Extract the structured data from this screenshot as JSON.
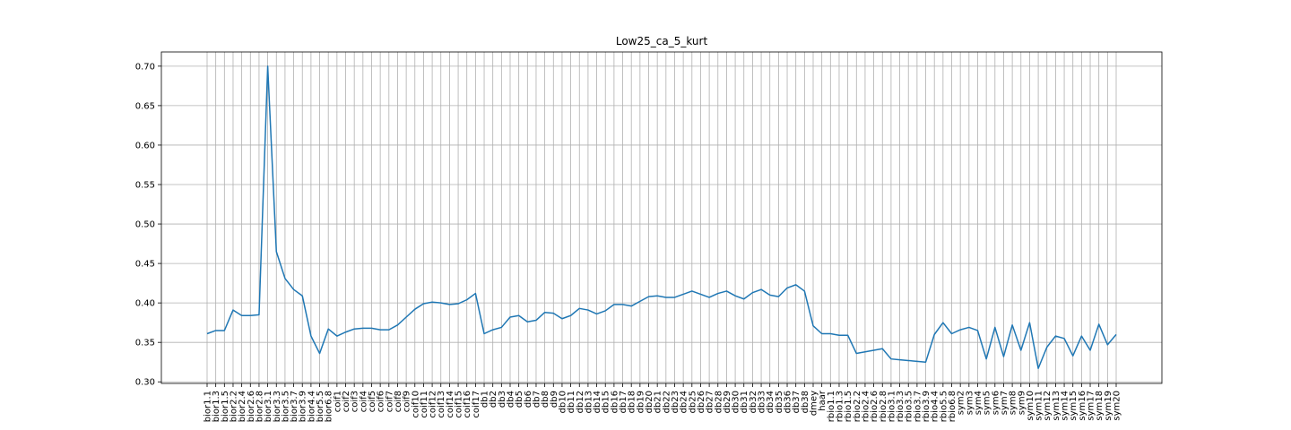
{
  "chart_data": {
    "type": "line",
    "title": "Low25_ca_5_kurt",
    "xlabel": "",
    "ylabel": "",
    "ylim": [
      0.298,
      0.718
    ],
    "yticks": [
      0.3,
      0.35,
      0.4,
      0.45,
      0.5,
      0.55,
      0.6,
      0.65,
      0.7
    ],
    "grid": true,
    "line_color": "#1f77b4",
    "categories": [
      "bior1.1",
      "bior1.3",
      "bior1.5",
      "bior2.2",
      "bior2.4",
      "bior2.6",
      "bior2.8",
      "bior3.1",
      "bior3.3",
      "bior3.5",
      "bior3.7",
      "bior3.9",
      "bior4.4",
      "bior5.5",
      "bior6.8",
      "coif1",
      "coif2",
      "coif3",
      "coif4",
      "coif5",
      "coif6",
      "coif7",
      "coif8",
      "coif9",
      "coif10",
      "coif11",
      "coif12",
      "coif13",
      "coif14",
      "coif15",
      "coif16",
      "coif17",
      "db1",
      "db2",
      "db3",
      "db4",
      "db5",
      "db6",
      "db7",
      "db8",
      "db9",
      "db10",
      "db11",
      "db12",
      "db13",
      "db14",
      "db15",
      "db16",
      "db17",
      "db18",
      "db19",
      "db20",
      "db21",
      "db22",
      "db23",
      "db24",
      "db25",
      "db26",
      "db27",
      "db28",
      "db29",
      "db30",
      "db31",
      "db32",
      "db33",
      "db34",
      "db35",
      "db36",
      "db37",
      "db38",
      "dmey",
      "haar",
      "rbio1.1",
      "rbio1.3",
      "rbio1.5",
      "rbio2.2",
      "rbio2.4",
      "rbio2.6",
      "rbio2.8",
      "rbio3.1",
      "rbio3.3",
      "rbio3.5",
      "rbio3.7",
      "rbio3.9",
      "rbio4.4",
      "rbio5.5",
      "rbio6.8",
      "sym2",
      "sym3",
      "sym4",
      "sym5",
      "sym6",
      "sym7",
      "sym8",
      "sym9",
      "sym10",
      "sym11",
      "sym12",
      "sym13",
      "sym14",
      "sym15",
      "sym16",
      "sym17",
      "sym18",
      "sym19",
      "sym20"
    ],
    "series": [
      {
        "values": [
          0.361,
          0.365,
          0.365,
          0.391,
          0.384,
          0.384,
          0.385,
          0.7,
          0.465,
          0.431,
          0.417,
          0.409,
          0.358,
          0.336,
          0.367,
          0.358,
          0.363,
          0.367,
          0.368,
          0.368,
          0.366,
          0.366,
          0.372,
          0.382,
          0.392,
          0.399,
          0.401,
          0.4,
          0.398,
          0.399,
          0.404,
          0.412,
          0.361,
          0.366,
          0.369,
          0.382,
          0.384,
          0.376,
          0.378,
          0.388,
          0.387,
          0.38,
          0.384,
          0.393,
          0.391,
          0.386,
          0.39,
          0.398,
          0.398,
          0.396,
          0.402,
          0.408,
          0.409,
          0.407,
          0.407,
          0.411,
          0.415,
          0.411,
          0.407,
          0.412,
          0.415,
          0.409,
          0.405,
          0.413,
          0.417,
          0.41,
          0.408,
          0.419,
          0.423,
          0.415,
          0.371,
          0.361,
          0.361,
          0.359,
          0.359,
          0.336,
          0.338,
          0.34,
          0.342,
          0.329,
          0.328,
          0.327,
          0.326,
          0.325,
          0.36,
          0.375,
          0.361,
          0.366,
          0.369,
          0.365,
          0.329,
          0.369,
          0.332,
          0.372,
          0.34,
          0.375,
          0.317,
          0.344,
          0.358,
          0.355,
          0.333,
          0.358,
          0.34,
          0.373,
          0.347,
          0.36
        ]
      }
    ]
  }
}
